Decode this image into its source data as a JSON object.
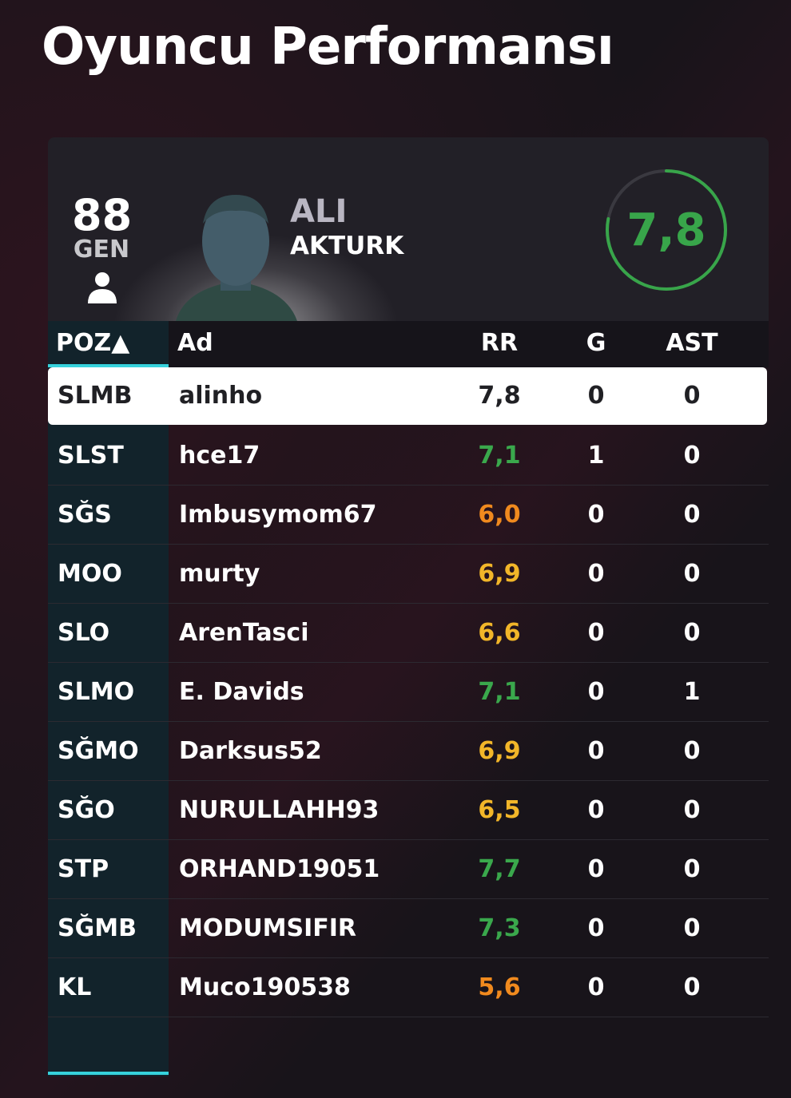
{
  "page": {
    "title": "Oyuncu Performansı"
  },
  "player": {
    "overall": "88",
    "overall_label": "GEN",
    "first_name": "ALI",
    "last_name": "AKTURK",
    "rating": "7,8",
    "rating_fraction": 0.78,
    "rating_color": "#38a54a"
  },
  "table": {
    "headers": {
      "position": "POZ",
      "sort_indicator": "▲",
      "name": "Ad",
      "rating": "RR",
      "goals": "G",
      "assists": "AST"
    },
    "rows": [
      {
        "position": "SLMB",
        "name": "alinho",
        "rating": "7,8",
        "goals": "0",
        "assists": "0",
        "rating_color": "neutral",
        "selected": true
      },
      {
        "position": "SLST",
        "name": "hce17",
        "rating": "7,1",
        "goals": "1",
        "assists": "0",
        "rating_color": "green"
      },
      {
        "position": "SĞS",
        "name": "Imbusymom67",
        "rating": "6,0",
        "goals": "0",
        "assists": "0",
        "rating_color": "orange"
      },
      {
        "position": "MOO",
        "name": "murty",
        "rating": "6,9",
        "goals": "0",
        "assists": "0",
        "rating_color": "yellow"
      },
      {
        "position": "SLO",
        "name": "ArenTasci",
        "rating": "6,6",
        "goals": "0",
        "assists": "0",
        "rating_color": "yellow"
      },
      {
        "position": "SLMO",
        "name": "E. Davids",
        "rating": "7,1",
        "goals": "0",
        "assists": "1",
        "rating_color": "green"
      },
      {
        "position": "SĞMO",
        "name": "Darksus52",
        "rating": "6,9",
        "goals": "0",
        "assists": "0",
        "rating_color": "yellow"
      },
      {
        "position": "SĞO",
        "name": "NURULLAHH93",
        "rating": "6,5",
        "goals": "0",
        "assists": "0",
        "rating_color": "yellow"
      },
      {
        "position": "STP",
        "name": "ORHAND19051",
        "rating": "7,7",
        "goals": "0",
        "assists": "0",
        "rating_color": "green"
      },
      {
        "position": "SĞMB",
        "name": "MODUMSIFIR",
        "rating": "7,3",
        "goals": "0",
        "assists": "0",
        "rating_color": "green"
      },
      {
        "position": "KL",
        "name": "Muco190538",
        "rating": "5,6",
        "goals": "0",
        "assists": "0",
        "rating_color": "orange"
      }
    ]
  },
  "icons": {
    "person": "person-icon",
    "avatar": "player-silhouette-icon"
  }
}
